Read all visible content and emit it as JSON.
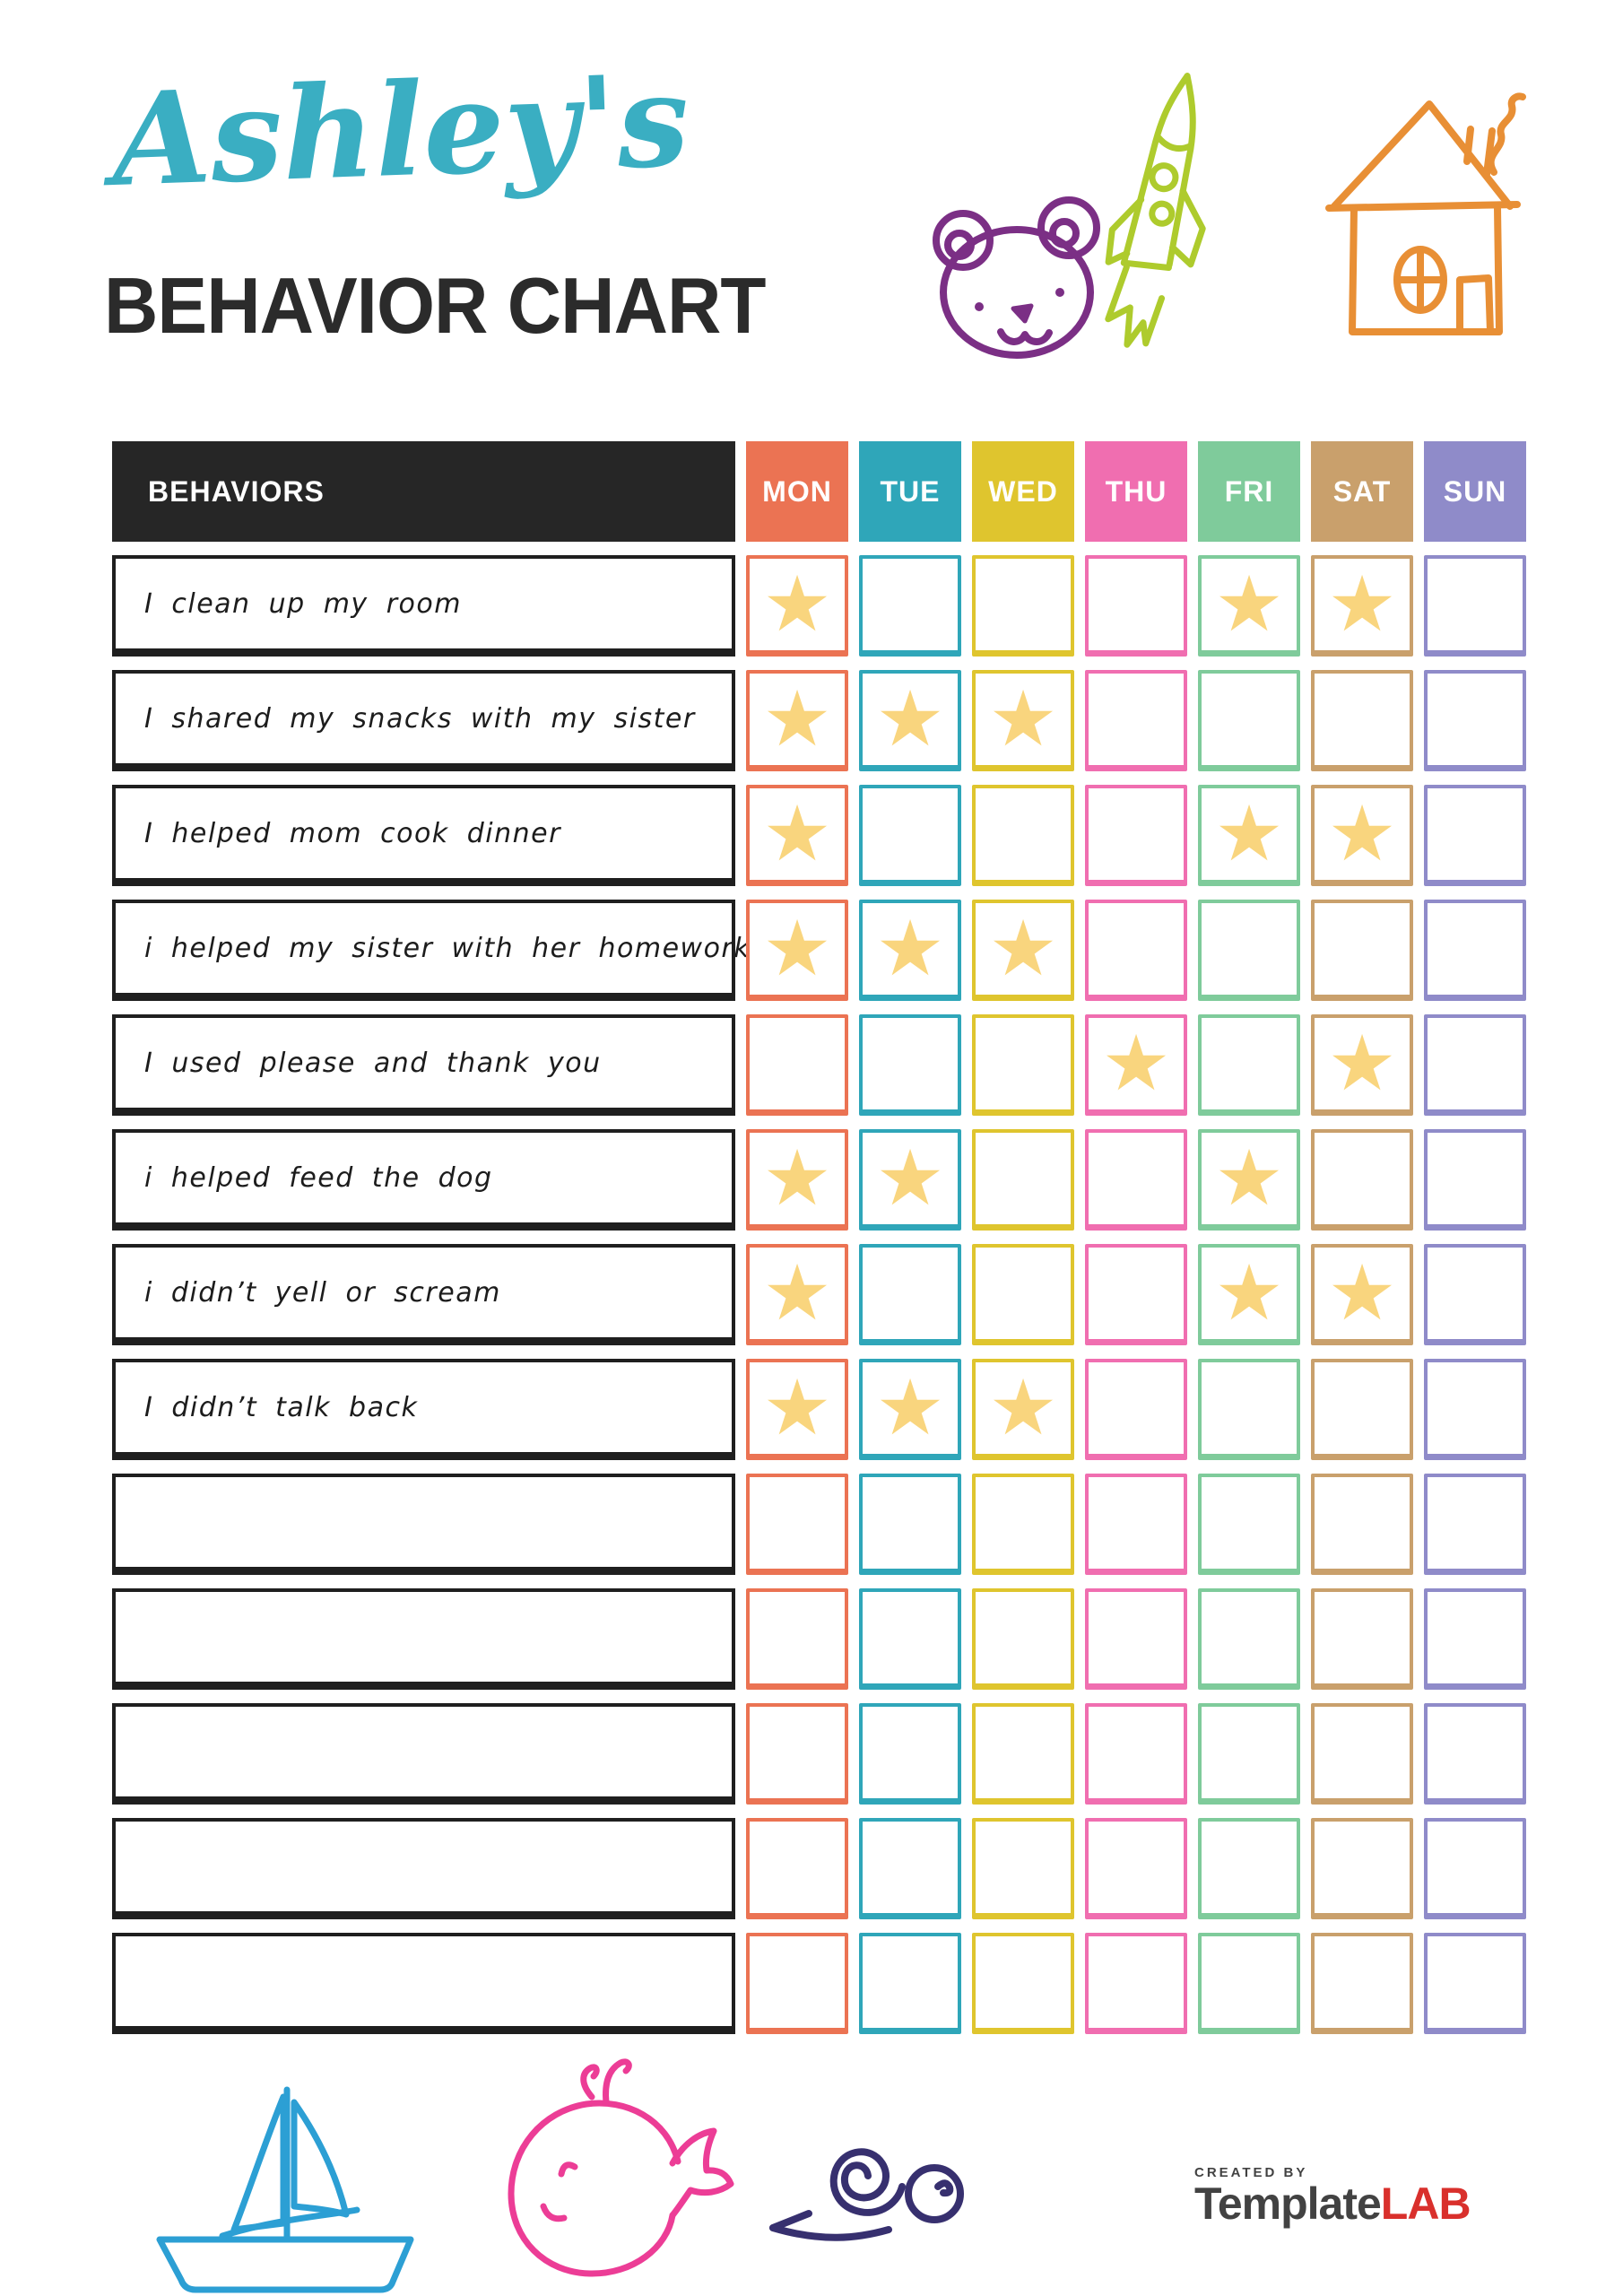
{
  "header": {
    "owner_name": "Ashley's",
    "title": "BEHAVIOR CHART",
    "owner_name_color": "#3aaec2",
    "title_color": "#2b2b2b"
  },
  "decorations": {
    "top": [
      {
        "name": "bear",
        "color": "#7b2f85"
      },
      {
        "name": "rocket",
        "color": "#aecb2d"
      },
      {
        "name": "house",
        "color": "#e88f35"
      }
    ],
    "bottom": [
      {
        "name": "sailboat",
        "color": "#2c9fd4"
      },
      {
        "name": "whale",
        "color": "#ec3d96"
      },
      {
        "name": "snail",
        "color": "#37306f"
      }
    ]
  },
  "table": {
    "behaviors_header": "BEHAVIORS",
    "header_bg": "#262626",
    "header_text_color": "#ffffff",
    "star_glyph": "★",
    "star_color": "#f9d57e",
    "days": [
      {
        "label": "MON",
        "color": "#eb7353"
      },
      {
        "label": "TUE",
        "color": "#2fa6b9"
      },
      {
        "label": "WED",
        "color": "#dfc52e"
      },
      {
        "label": "THU",
        "color": "#f06eb0"
      },
      {
        "label": "FRI",
        "color": "#7fcb9b"
      },
      {
        "label": "SAT",
        "color": "#c9a06c"
      },
      {
        "label": "SUN",
        "color": "#8f8bc9"
      }
    ],
    "rows": [
      {
        "behavior": "I clean up my room",
        "stars": [
          "MON",
          "FRI",
          "SAT"
        ]
      },
      {
        "behavior": "I shared my snacks with my sister",
        "stars": [
          "MON",
          "TUE",
          "WED"
        ]
      },
      {
        "behavior": "I helped mom cook dinner",
        "stars": [
          "MON",
          "FRI",
          "SAT"
        ]
      },
      {
        "behavior": "i helped my sister with her homework",
        "stars": [
          "MON",
          "TUE",
          "WED"
        ]
      },
      {
        "behavior": "I used please and thank you",
        "stars": [
          "THU",
          "SAT"
        ]
      },
      {
        "behavior": "i helped feed the dog",
        "stars": [
          "MON",
          "TUE",
          "FRI"
        ]
      },
      {
        "behavior": "i didn’t yell or scream",
        "stars": [
          "MON",
          "FRI",
          "SAT"
        ]
      },
      {
        "behavior": "I didn’t talk back",
        "stars": [
          "MON",
          "TUE",
          "WED"
        ]
      },
      {
        "behavior": "",
        "stars": []
      },
      {
        "behavior": "",
        "stars": []
      },
      {
        "behavior": "",
        "stars": []
      },
      {
        "behavior": "",
        "stars": []
      },
      {
        "behavior": "",
        "stars": []
      }
    ]
  },
  "footer": {
    "created_by": "CREATED BY",
    "brand_name_primary": "Template",
    "brand_name_accent": "LAB",
    "brand_primary_color": "#424242",
    "brand_accent_color": "#d9302c"
  }
}
